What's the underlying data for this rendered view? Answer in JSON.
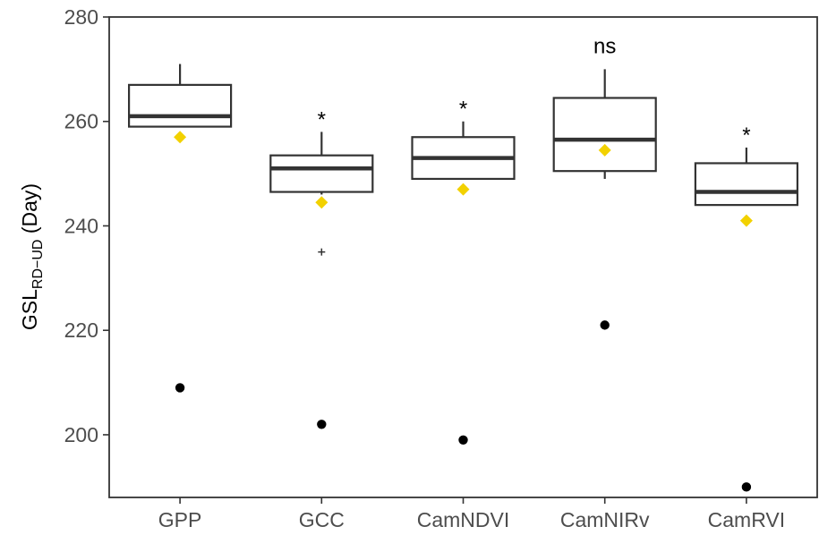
{
  "chart_data": {
    "type": "box",
    "title": "",
    "ylabel": {
      "main": "GSL",
      "subscript": "RD−UD",
      "suffix": " (Day)"
    },
    "xlabel": "",
    "ylim": [
      188,
      280
    ],
    "yticks": [
      200,
      220,
      240,
      260,
      280
    ],
    "grid": false,
    "legend": "none",
    "categories": [
      "GPP",
      "GCC",
      "CamNDVI",
      "CamNIRv",
      "CamRVI"
    ],
    "boxes": [
      {
        "category": "GPP",
        "whisker_low": 259,
        "q1": 259,
        "median": 261,
        "q3": 267,
        "whisker_high": 271,
        "outliers_plus": [],
        "mean_diamond": 257,
        "point": 209,
        "annotation": ""
      },
      {
        "category": "GCC",
        "whisker_low": 246,
        "q1": 246.5,
        "median": 251,
        "q3": 253.5,
        "whisker_high": 258,
        "outliers_plus": [
          235
        ],
        "mean_diamond": 244.5,
        "point": 202,
        "annotation": "*"
      },
      {
        "category": "CamNDVI",
        "whisker_low": 249,
        "q1": 249,
        "median": 253,
        "q3": 257,
        "whisker_high": 260,
        "outliers_plus": [],
        "mean_diamond": 247,
        "point": 199,
        "annotation": "*"
      },
      {
        "category": "CamNIRv",
        "whisker_low": 249,
        "q1": 250.5,
        "median": 256.5,
        "q3": 264.5,
        "whisker_high": 270,
        "outliers_plus": [],
        "mean_diamond": 254.5,
        "point": 221,
        "annotation": "ns"
      },
      {
        "category": "CamRVI",
        "whisker_low": 244,
        "q1": 244,
        "median": 246.5,
        "q3": 252,
        "whisker_high": 255,
        "outliers_plus": [],
        "mean_diamond": 241,
        "point": 190,
        "annotation": "*"
      }
    ],
    "colors": {
      "box": "#333333",
      "mean_diamond": "#f2d100",
      "point": "#000000",
      "axis": "#333333",
      "tick_text": "#4d4d4d"
    }
  }
}
